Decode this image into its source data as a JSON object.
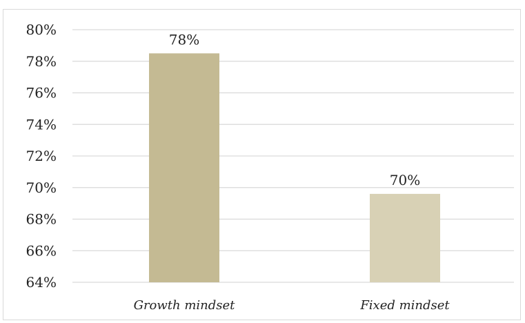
{
  "chart_data": {
    "type": "bar",
    "title": "",
    "xlabel": "",
    "ylabel": "",
    "categories": [
      "Growth mindset",
      "Fixed mindset"
    ],
    "values": [
      78.5,
      69.6
    ],
    "data_labels": [
      "78%",
      "70%"
    ],
    "ylim": [
      64,
      80
    ],
    "yticks": [
      64,
      66,
      68,
      70,
      72,
      74,
      76,
      78,
      80
    ],
    "ytick_labels": [
      "64%",
      "66%",
      "68%",
      "70%",
      "72%",
      "74%",
      "76%",
      "78%",
      "80%"
    ],
    "grid": true,
    "legend": "none",
    "colors": [
      "#c4ba93",
      "#d8d1b5"
    ],
    "gridline_color": "#d9d9d9"
  }
}
